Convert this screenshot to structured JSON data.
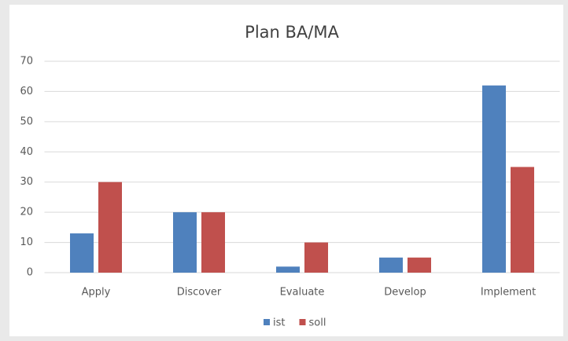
{
  "chart_data": {
    "type": "bar",
    "title": "Plan BA/MA",
    "categories": [
      "Apply",
      "Discover",
      "Evaluate",
      "Develop",
      "Implement"
    ],
    "series": [
      {
        "name": "ist",
        "color": "#4f81bd",
        "values": [
          13,
          20,
          2,
          5,
          62
        ]
      },
      {
        "name": "soll",
        "color": "#c0504d",
        "values": [
          30,
          20,
          10,
          5,
          35
        ]
      }
    ],
    "ylim": [
      0,
      70
    ],
    "yticks": [
      0,
      10,
      20,
      30,
      40,
      50,
      60,
      70
    ],
    "grid": true,
    "legend": "bottom"
  }
}
